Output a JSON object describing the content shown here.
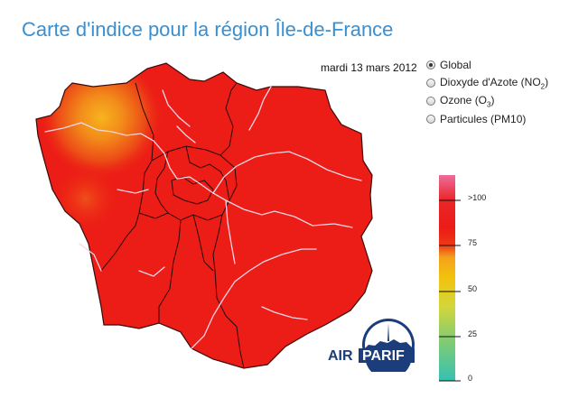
{
  "header": {
    "title": "Carte d'indice pour la région Île-de-France"
  },
  "map": {
    "date": "mardi 13 mars 2012",
    "fill_color": "#ec1c16",
    "hotspot_color": "#f7a51c"
  },
  "pollutant_options": [
    {
      "label": "Global",
      "sub": "",
      "suffix": "",
      "selected": true
    },
    {
      "label": "Dioxyde d'Azote (NO",
      "sub": "2",
      "suffix": ")",
      "selected": false
    },
    {
      "label": "Ozone (O",
      "sub": "3",
      "suffix": ")",
      "selected": false
    },
    {
      "label": "Particules (PM10)",
      "sub": "",
      "suffix": "",
      "selected": false
    }
  ],
  "scale": {
    "ticks": [
      "0",
      "25",
      "50",
      "75",
      ">100"
    ],
    "colors": [
      "#3cc3b4",
      "#c6d636",
      "#f5c60c",
      "#ec1c16",
      "#ea5f8f"
    ]
  },
  "logo": {
    "part1": "AIR",
    "part2": "PARIF"
  }
}
